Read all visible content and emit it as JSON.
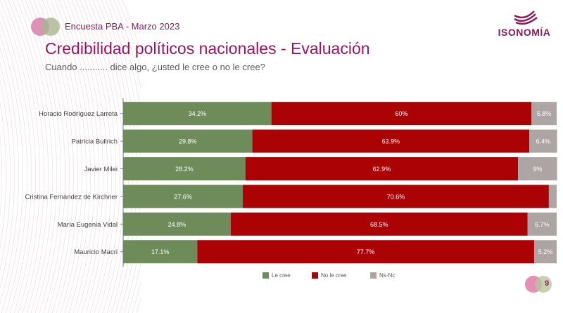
{
  "header": {
    "survey_label": "Encuesta PBA - Marzo 2023",
    "title": "Credibilidad políticos nacionales - Evaluación",
    "subtitle": "Cuando ........... dice algo, ¿usted le cree o no le cree?",
    "logo_text": "ISONOMÍA",
    "logo_icon": "isonomia-waves-logo-icon"
  },
  "colors": {
    "le_cree": "#6e8b5a",
    "no_le_cree": "#ab0206",
    "ns_nc": "#ada4a4",
    "brand": "#9b1460"
  },
  "page_number": "9",
  "chart_data": {
    "type": "bar",
    "orientation": "horizontal",
    "stacked": true,
    "title": "Credibilidad políticos nacionales - Evaluación",
    "xlabel": "",
    "ylabel": "",
    "xlim": [
      0,
      100
    ],
    "grid": false,
    "legend_position": "bottom",
    "categories": [
      "Horacio Rodríguez Larreta",
      "Patricia Bullrich",
      "Javier Milei",
      "Cristina Fernández de Kirchner",
      "María Eugenia Vidal",
      "Mauricio Macri"
    ],
    "series": [
      {
        "name": "Le cree",
        "color": "#6e8b5a",
        "values": [
          34.2,
          29.8,
          28.2,
          27.6,
          24.8,
          17.1
        ],
        "labels": [
          "34.2%",
          "29.8%",
          "28.2%",
          "27.6%",
          "24.8%",
          "17.1%"
        ]
      },
      {
        "name": "No le cree",
        "color": "#ab0206",
        "values": [
          60,
          63.9,
          62.9,
          70.6,
          68.5,
          77.7
        ],
        "labels": [
          "60%",
          "63.9%",
          "62.9%",
          "70.6%",
          "68.5%",
          "77.7%"
        ]
      },
      {
        "name": "Ns-Nc",
        "color": "#ada4a4",
        "values": [
          5.8,
          6.4,
          9,
          1.8,
          6.7,
          5.2
        ],
        "labels": [
          "5.8%",
          "6.4%",
          "9%",
          "",
          "6.7%",
          "5.2%"
        ]
      }
    ]
  }
}
